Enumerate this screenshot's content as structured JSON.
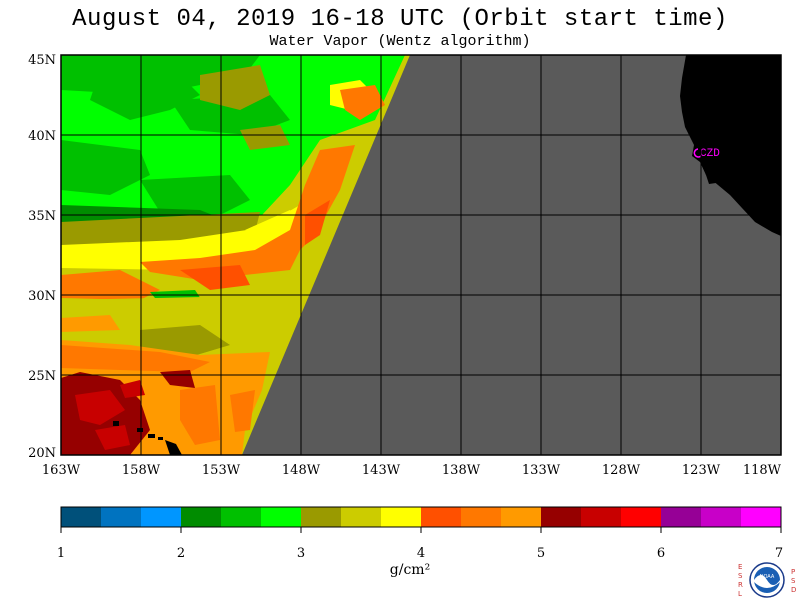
{
  "header": {
    "title": "August 04, 2019  16-18 UTC  (Orbit start time)",
    "subtitle": "Water Vapor (Wentz algorithm)"
  },
  "map": {
    "lat_labels": [
      "45N",
      "40N",
      "35N",
      "30N",
      "25N",
      "20N"
    ],
    "lon_labels": [
      "163W",
      "158W",
      "153W",
      "148W",
      "143W",
      "138W",
      "133W",
      "128W",
      "123W",
      "118W"
    ],
    "station_label": "CZD",
    "colors": {
      "land": "#000000",
      "no_data": "#5a5a5a",
      "grid": "#000000",
      "station": "#ff00ff"
    }
  },
  "colorbar": {
    "colors": [
      "#00507a",
      "#0073c0",
      "#0096ff",
      "#008c00",
      "#00c000",
      "#00ff00",
      "#9a9a00",
      "#cccc00",
      "#ffff00",
      "#ff5000",
      "#ff7800",
      "#ff9a00",
      "#960000",
      "#c80000",
      "#ff0000",
      "#960096",
      "#c800c8",
      "#ff00ff"
    ],
    "tick_labels": [
      "1",
      "2",
      "3",
      "4",
      "5",
      "6",
      "7"
    ],
    "units": "g/cm²"
  },
  "logo": {
    "left_letters": "ESRL",
    "right_letters": "PSD",
    "center": "NOAA"
  }
}
